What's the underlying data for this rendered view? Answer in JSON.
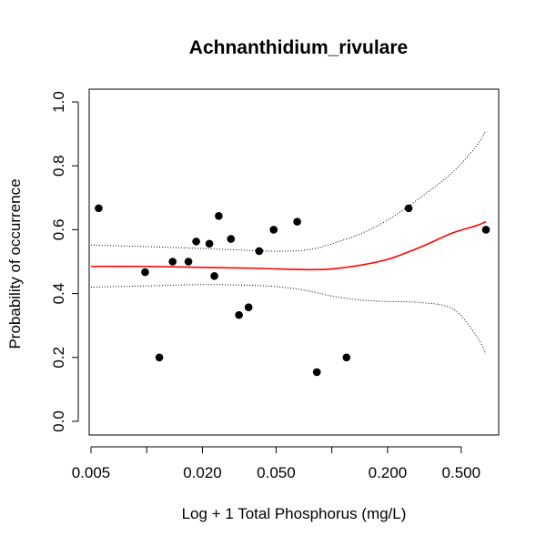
{
  "chart_data": {
    "type": "scatter",
    "title": "Achnanthidium_rivulare",
    "xlabel": "Log + 1 Total Phosphorus (mg/L)",
    "ylabel": "Probability of occurrence",
    "x_scale": "log",
    "xlim": [
      0.005,
      0.75
    ],
    "ylim": [
      0,
      1
    ],
    "x_ticks": [
      {
        "value": 0.005,
        "label": "0.005"
      },
      {
        "value": 0.01,
        "label": ""
      },
      {
        "value": 0.02,
        "label": "0.020"
      },
      {
        "value": 0.05,
        "label": "0.050"
      },
      {
        "value": 0.1,
        "label": ""
      },
      {
        "value": 0.2,
        "label": "0.200"
      },
      {
        "value": 0.5,
        "label": "0.500"
      }
    ],
    "y_ticks": [
      {
        "value": 0.0,
        "label": "0.0"
      },
      {
        "value": 0.2,
        "label": "0.2"
      },
      {
        "value": 0.4,
        "label": "0.4"
      },
      {
        "value": 0.6,
        "label": "0.6"
      },
      {
        "value": 0.8,
        "label": "0.8"
      },
      {
        "value": 1.0,
        "label": "1.0"
      }
    ],
    "grid": false,
    "legend": "none",
    "points": [
      {
        "x": 0.0055,
        "y": 0.667
      },
      {
        "x": 0.0098,
        "y": 0.467
      },
      {
        "x": 0.0117,
        "y": 0.2
      },
      {
        "x": 0.0138,
        "y": 0.5
      },
      {
        "x": 0.0168,
        "y": 0.5
      },
      {
        "x": 0.0185,
        "y": 0.563
      },
      {
        "x": 0.0218,
        "y": 0.556
      },
      {
        "x": 0.0232,
        "y": 0.455
      },
      {
        "x": 0.0245,
        "y": 0.643
      },
      {
        "x": 0.0285,
        "y": 0.571
      },
      {
        "x": 0.0315,
        "y": 0.333
      },
      {
        "x": 0.0355,
        "y": 0.357
      },
      {
        "x": 0.0405,
        "y": 0.533
      },
      {
        "x": 0.0485,
        "y": 0.6
      },
      {
        "x": 0.065,
        "y": 0.625
      },
      {
        "x": 0.083,
        "y": 0.154
      },
      {
        "x": 0.12,
        "y": 0.2
      },
      {
        "x": 0.26,
        "y": 0.667
      },
      {
        "x": 0.68,
        "y": 0.6
      }
    ],
    "fit": [
      {
        "x": 0.005,
        "y": 0.485
      },
      {
        "x": 0.01,
        "y": 0.485
      },
      {
        "x": 0.02,
        "y": 0.482
      },
      {
        "x": 0.04,
        "y": 0.479
      },
      {
        "x": 0.06,
        "y": 0.476
      },
      {
        "x": 0.08,
        "y": 0.475
      },
      {
        "x": 0.1,
        "y": 0.477
      },
      {
        "x": 0.14,
        "y": 0.488
      },
      {
        "x": 0.2,
        "y": 0.507
      },
      {
        "x": 0.3,
        "y": 0.545
      },
      {
        "x": 0.45,
        "y": 0.59
      },
      {
        "x": 0.6,
        "y": 0.612
      },
      {
        "x": 0.68,
        "y": 0.625
      }
    ],
    "ci_upper": [
      {
        "x": 0.005,
        "y": 0.552
      },
      {
        "x": 0.01,
        "y": 0.547
      },
      {
        "x": 0.02,
        "y": 0.541
      },
      {
        "x": 0.04,
        "y": 0.534
      },
      {
        "x": 0.06,
        "y": 0.533
      },
      {
        "x": 0.08,
        "y": 0.54
      },
      {
        "x": 0.1,
        "y": 0.556
      },
      {
        "x": 0.14,
        "y": 0.585
      },
      {
        "x": 0.2,
        "y": 0.63
      },
      {
        "x": 0.3,
        "y": 0.7
      },
      {
        "x": 0.45,
        "y": 0.78
      },
      {
        "x": 0.6,
        "y": 0.86
      },
      {
        "x": 0.68,
        "y": 0.91
      }
    ],
    "ci_lower": [
      {
        "x": 0.005,
        "y": 0.42
      },
      {
        "x": 0.01,
        "y": 0.424
      },
      {
        "x": 0.02,
        "y": 0.428
      },
      {
        "x": 0.04,
        "y": 0.425
      },
      {
        "x": 0.06,
        "y": 0.417
      },
      {
        "x": 0.08,
        "y": 0.405
      },
      {
        "x": 0.1,
        "y": 0.392
      },
      {
        "x": 0.14,
        "y": 0.38
      },
      {
        "x": 0.2,
        "y": 0.375
      },
      {
        "x": 0.3,
        "y": 0.372
      },
      {
        "x": 0.45,
        "y": 0.352
      },
      {
        "x": 0.6,
        "y": 0.27
      },
      {
        "x": 0.68,
        "y": 0.21
      }
    ],
    "colors": {
      "points": "#000000",
      "fit": "#ff0000",
      "ci": "#000000",
      "axis": "#000000"
    }
  }
}
